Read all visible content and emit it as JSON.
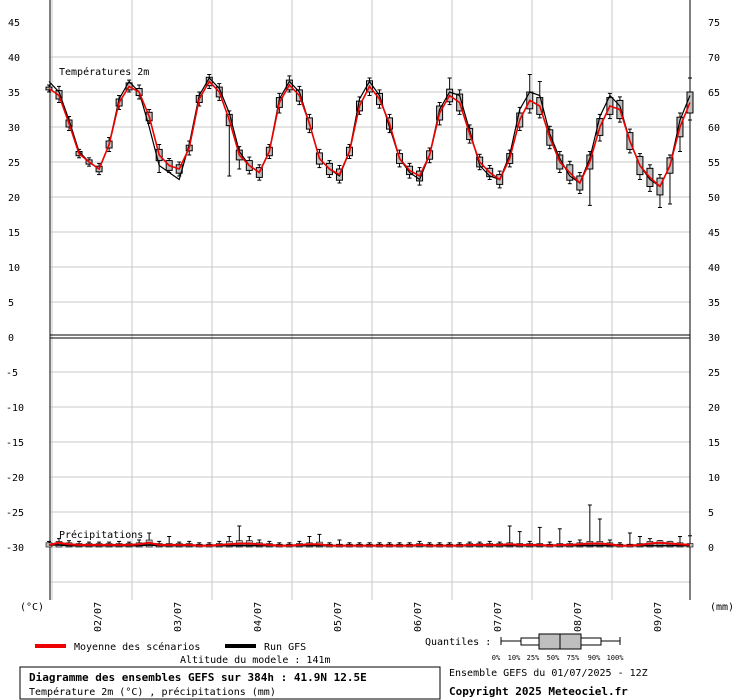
{
  "chart_data": {
    "type": "line",
    "title": "Diagramme des ensembles GEFS sur 384h : 41.9N 12.5E",
    "subtitle": "Température 2m (°C) , précipitations (mm)",
    "panels": {
      "temperature": {
        "label": "Températures 2m",
        "ylim": [
          0,
          45
        ],
        "left_ticks": [
          "45",
          "40",
          "35",
          "30",
          "25",
          "20",
          "15",
          "10",
          "5",
          "0"
        ],
        "right_ticks": [
          "75",
          "70",
          "65",
          "60",
          "55",
          "50",
          "45",
          "40",
          "35",
          "30"
        ]
      },
      "precipitation": {
        "label": "Précipitations",
        "ylim": [
          -32,
          0
        ],
        "left_ticks": [
          "0",
          "-5",
          "-10",
          "-15",
          "-20",
          "-25",
          "-30"
        ],
        "right_ticks": [
          "30",
          "25",
          "20",
          "15",
          "10",
          "5",
          "0"
        ]
      }
    },
    "left_unit": "(°C)",
    "right_unit": "(mm)",
    "x_ticks": [
      "02/07",
      "03/07",
      "04/07",
      "05/07",
      "06/07",
      "07/07",
      "08/07",
      "09/07"
    ],
    "grid": true,
    "series": [
      {
        "name": "Moyenne des scénarios",
        "color": "#ee0000",
        "temp_values": [
          35.5,
          34.5,
          30.5,
          26.2,
          25.0,
          24.0,
          27.5,
          33.5,
          35.8,
          35.0,
          31.5,
          26.0,
          24.5,
          24.0,
          27.0,
          34.0,
          36.5,
          35.0,
          31.0,
          26.0,
          24.5,
          23.5,
          26.5,
          33.5,
          36.0,
          34.5,
          30.5,
          25.5,
          24.0,
          23.2,
          26.5,
          33.0,
          35.8,
          34.0,
          30.5,
          25.5,
          23.8,
          23.0,
          26.0,
          32.0,
          34.5,
          33.5,
          29.0,
          25.0,
          23.5,
          22.5,
          25.5,
          31.0,
          33.8,
          33.0,
          28.5,
          25.0,
          23.5,
          22.0,
          25.0,
          30.0,
          33.0,
          32.5,
          28.0,
          24.5,
          22.8,
          21.5,
          24.5,
          30.0,
          33.5
        ],
        "precip_values": [
          0.3,
          0.6,
          0.4,
          0.3,
          0.3,
          0.3,
          0.3,
          0.3,
          0.3,
          0.4,
          0.6,
          0.3,
          0.3,
          0.3,
          0.3,
          0.2,
          0.2,
          0.3,
          0.4,
          0.5,
          0.5,
          0.4,
          0.3,
          0.2,
          0.2,
          0.3,
          0.4,
          0.4,
          0.2,
          0.2,
          0.2,
          0.2,
          0.2,
          0.2,
          0.2,
          0.2,
          0.2,
          0.3,
          0.2,
          0.2,
          0.2,
          0.2,
          0.3,
          0.3,
          0.3,
          0.3,
          0.4,
          0.3,
          0.3,
          0.3,
          0.2,
          0.3,
          0.3,
          0.4,
          0.5,
          0.5,
          0.4,
          0.2,
          0.2,
          0.3,
          0.5,
          0.6,
          0.5,
          0.4,
          0.3
        ]
      },
      {
        "name": "Run GFS",
        "color": "#000000",
        "temp_values": [
          36.5,
          35.0,
          31.0,
          26.5,
          25.0,
          24.0,
          27.5,
          34.0,
          36.5,
          35.0,
          30.0,
          24.5,
          23.5,
          22.5,
          27.5,
          34.5,
          37.0,
          35.5,
          32.0,
          26.5,
          24.5,
          23.5,
          26.5,
          34.0,
          36.5,
          35.0,
          30.5,
          25.5,
          24.0,
          23.0,
          26.5,
          34.0,
          36.5,
          34.5,
          30.0,
          25.5,
          23.5,
          22.5,
          26.0,
          32.5,
          35.0,
          34.5,
          29.5,
          24.5,
          23.0,
          22.5,
          26.0,
          32.5,
          35.0,
          34.5,
          29.0,
          25.5,
          23.0,
          22.0,
          25.5,
          31.5,
          34.5,
          33.0,
          28.0,
          24.5,
          22.5,
          21.5,
          24.5,
          31.0,
          34.5
        ],
        "precip_values": [
          0.3,
          0.3,
          0.2,
          0.2,
          0.2,
          0.2,
          0.2,
          0.2,
          0.2,
          0.2,
          0.3,
          0.2,
          0.2,
          0.2,
          0.2,
          0.2,
          0.2,
          0.2,
          0.2,
          0.2,
          0.2,
          0.2,
          0.2,
          0.2,
          0.2,
          0.2,
          0.2,
          0.2,
          0.2,
          0.2,
          0.2,
          0.2,
          0.2,
          0.2,
          0.2,
          0.2,
          0.2,
          0.2,
          0.2,
          0.2,
          0.2,
          0.2,
          0.2,
          0.2,
          0.2,
          0.2,
          0.2,
          0.2,
          0.2,
          0.2,
          0.2,
          0.2,
          0.2,
          0.2,
          0.2,
          0.2,
          0.2,
          0.2,
          0.2,
          0.2,
          0.2,
          0.2,
          0.2,
          0.2,
          0.2
        ]
      }
    ],
    "temp_spread": [
      [
        35.3,
        35.7
      ],
      [
        34.0,
        35.2
      ],
      [
        30.0,
        31.0
      ],
      [
        25.9,
        26.5
      ],
      [
        24.7,
        25.3
      ],
      [
        23.6,
        24.4
      ],
      [
        27.0,
        28.0
      ],
      [
        33.0,
        34.0
      ],
      [
        35.3,
        36.3
      ],
      [
        34.5,
        35.5
      ],
      [
        30.9,
        32.1
      ],
      [
        25.2,
        26.8
      ],
      [
        23.8,
        25.2
      ],
      [
        23.4,
        24.6
      ],
      [
        26.6,
        27.4
      ],
      [
        33.5,
        34.5
      ],
      [
        35.9,
        37.1
      ],
      [
        34.3,
        35.7
      ],
      [
        30.2,
        31.8
      ],
      [
        25.3,
        26.7
      ],
      [
        23.8,
        25.2
      ],
      [
        22.8,
        24.2
      ],
      [
        25.9,
        27.1
      ],
      [
        32.8,
        34.2
      ],
      [
        35.3,
        36.7
      ],
      [
        33.7,
        35.3
      ],
      [
        29.7,
        31.3
      ],
      [
        24.7,
        26.3
      ],
      [
        23.2,
        24.8
      ],
      [
        22.4,
        24.0
      ],
      [
        25.9,
        27.1
      ],
      [
        32.3,
        33.7
      ],
      [
        35.0,
        36.6
      ],
      [
        33.2,
        34.8
      ],
      [
        29.7,
        31.3
      ],
      [
        24.8,
        26.2
      ],
      [
        23.2,
        24.4
      ],
      [
        22.3,
        23.7
      ],
      [
        25.4,
        26.6
      ],
      [
        31.0,
        33.0
      ],
      [
        33.6,
        35.4
      ],
      [
        32.3,
        34.7
      ],
      [
        28.2,
        29.8
      ],
      [
        24.3,
        25.7
      ],
      [
        22.9,
        24.1
      ],
      [
        21.8,
        23.2
      ],
      [
        24.8,
        26.2
      ],
      [
        30.0,
        32.0
      ],
      [
        32.6,
        35.0
      ],
      [
        31.8,
        34.2
      ],
      [
        27.4,
        29.6
      ],
      [
        24.0,
        26.0
      ],
      [
        22.4,
        24.6
      ],
      [
        21.0,
        23.0
      ],
      [
        24.0,
        26.0
      ],
      [
        28.8,
        31.2
      ],
      [
        31.8,
        34.2
      ],
      [
        31.2,
        33.8
      ],
      [
        26.8,
        29.2
      ],
      [
        23.2,
        25.8
      ],
      [
        21.5,
        24.1
      ],
      [
        20.3,
        22.7
      ],
      [
        23.4,
        25.6
      ],
      [
        28.6,
        31.4
      ],
      [
        32.0,
        35.0
      ]
    ],
    "temp_whiskers": [
      [
        35.0,
        36.0
      ],
      [
        33.5,
        35.8
      ],
      [
        29.5,
        31.5
      ],
      [
        25.6,
        26.8
      ],
      [
        24.4,
        25.6
      ],
      [
        23.2,
        24.8
      ],
      [
        26.5,
        28.5
      ],
      [
        32.5,
        34.5
      ],
      [
        35.0,
        36.7
      ],
      [
        34.0,
        36.0
      ],
      [
        30.5,
        32.5
      ],
      [
        23.5,
        27.5
      ],
      [
        23.5,
        25.5
      ],
      [
        23.0,
        25.0
      ],
      [
        26.0,
        28.0
      ],
      [
        33.0,
        35.0
      ],
      [
        35.5,
        37.5
      ],
      [
        33.8,
        36.2
      ],
      [
        23.0,
        32.3
      ],
      [
        24.0,
        27.2
      ],
      [
        23.3,
        25.7
      ],
      [
        22.4,
        24.6
      ],
      [
        25.5,
        27.5
      ],
      [
        32.0,
        34.8
      ],
      [
        35.0,
        37.3
      ],
      [
        33.2,
        35.8
      ],
      [
        29.2,
        31.8
      ],
      [
        24.2,
        26.8
      ],
      [
        22.8,
        25.2
      ],
      [
        22.0,
        24.5
      ],
      [
        25.5,
        27.5
      ],
      [
        31.8,
        34.3
      ],
      [
        34.5,
        37.0
      ],
      [
        32.7,
        35.3
      ],
      [
        29.2,
        31.8
      ],
      [
        24.3,
        26.7
      ],
      [
        22.7,
        24.8
      ],
      [
        21.7,
        24.2
      ],
      [
        24.9,
        27.0
      ],
      [
        30.3,
        33.5
      ],
      [
        33.2,
        37.0
      ],
      [
        31.8,
        35.3
      ],
      [
        27.7,
        30.3
      ],
      [
        23.9,
        26.1
      ],
      [
        22.5,
        24.5
      ],
      [
        21.3,
        23.7
      ],
      [
        24.3,
        26.7
      ],
      [
        29.5,
        32.8
      ],
      [
        32.0,
        37.5
      ],
      [
        31.3,
        36.5
      ],
      [
        26.9,
        30.1
      ],
      [
        23.5,
        26.5
      ],
      [
        21.9,
        25.1
      ],
      [
        20.5,
        23.5
      ],
      [
        18.8,
        26.5
      ],
      [
        28.0,
        31.8
      ],
      [
        31.2,
        34.8
      ],
      [
        30.7,
        34.3
      ],
      [
        26.3,
        29.7
      ],
      [
        22.5,
        26.2
      ],
      [
        20.8,
        24.6
      ],
      [
        18.5,
        23.2
      ],
      [
        19.0,
        26.0
      ],
      [
        26.5,
        32.0
      ],
      [
        31.0,
        37.0
      ]
    ],
    "precip_spread": [
      [
        0.0,
        0.6
      ],
      [
        0.0,
        0.8
      ],
      [
        0.0,
        0.6
      ],
      [
        0.0,
        0.5
      ],
      [
        0.0,
        0.5
      ],
      [
        0.0,
        0.5
      ],
      [
        0.0,
        0.5
      ],
      [
        0.0,
        0.5
      ],
      [
        0.0,
        0.5
      ],
      [
        0.0,
        0.6
      ],
      [
        0.0,
        1.0
      ],
      [
        0.0,
        0.5
      ],
      [
        0.0,
        0.5
      ],
      [
        0.0,
        0.5
      ],
      [
        0.0,
        0.5
      ],
      [
        0.0,
        0.4
      ],
      [
        0.0,
        0.4
      ],
      [
        0.0,
        0.5
      ],
      [
        0.0,
        0.8
      ],
      [
        0.0,
        0.9
      ],
      [
        0.0,
        0.9
      ],
      [
        0.0,
        0.6
      ],
      [
        0.0,
        0.5
      ],
      [
        0.0,
        0.4
      ],
      [
        0.0,
        0.4
      ],
      [
        0.0,
        0.5
      ],
      [
        0.0,
        0.6
      ],
      [
        0.0,
        0.7
      ],
      [
        0.0,
        0.4
      ],
      [
        0.0,
        0.4
      ],
      [
        0.0,
        0.4
      ],
      [
        0.0,
        0.4
      ],
      [
        0.0,
        0.4
      ],
      [
        0.0,
        0.4
      ],
      [
        0.0,
        0.4
      ],
      [
        0.0,
        0.4
      ],
      [
        0.0,
        0.4
      ],
      [
        0.0,
        0.5
      ],
      [
        0.0,
        0.4
      ],
      [
        0.0,
        0.4
      ],
      [
        0.0,
        0.4
      ],
      [
        0.0,
        0.4
      ],
      [
        0.0,
        0.5
      ],
      [
        0.0,
        0.5
      ],
      [
        0.0,
        0.5
      ],
      [
        0.0,
        0.5
      ],
      [
        0.0,
        0.6
      ],
      [
        0.0,
        0.5
      ],
      [
        0.0,
        0.5
      ],
      [
        0.0,
        0.5
      ],
      [
        0.0,
        0.4
      ],
      [
        0.0,
        0.5
      ],
      [
        0.0,
        0.5
      ],
      [
        0.0,
        0.6
      ],
      [
        0.0,
        0.8
      ],
      [
        0.0,
        0.8
      ],
      [
        0.0,
        0.6
      ],
      [
        0.0,
        0.4
      ],
      [
        0.0,
        0.4
      ],
      [
        0.0,
        0.5
      ],
      [
        0.0,
        0.8
      ],
      [
        0.0,
        0.9
      ],
      [
        0.0,
        0.8
      ],
      [
        0.0,
        0.6
      ],
      [
        0.0,
        0.5
      ]
    ],
    "precip_whiskers": [
      [
        0.0,
        0.8
      ],
      [
        0.0,
        1.2
      ],
      [
        0.0,
        0.9
      ],
      [
        0.0,
        0.8
      ],
      [
        0.0,
        0.7
      ],
      [
        0.0,
        0.7
      ],
      [
        0.0,
        0.7
      ],
      [
        0.0,
        0.8
      ],
      [
        0.0,
        0.7
      ],
      [
        0.0,
        1.0
      ],
      [
        0.0,
        2.0
      ],
      [
        0.0,
        0.8
      ],
      [
        0.0,
        1.5
      ],
      [
        0.0,
        0.7
      ],
      [
        0.0,
        0.8
      ],
      [
        0.0,
        0.6
      ],
      [
        0.0,
        0.6
      ],
      [
        0.0,
        0.8
      ],
      [
        0.0,
        1.5
      ],
      [
        0.0,
        3.0
      ],
      [
        0.0,
        1.5
      ],
      [
        0.0,
        1.0
      ],
      [
        0.0,
        0.8
      ],
      [
        0.0,
        0.6
      ],
      [
        0.0,
        0.6
      ],
      [
        0.0,
        0.8
      ],
      [
        0.0,
        1.5
      ],
      [
        0.0,
        1.8
      ],
      [
        0.0,
        0.6
      ],
      [
        0.0,
        1.0
      ],
      [
        0.0,
        0.6
      ],
      [
        0.0,
        0.6
      ],
      [
        0.0,
        0.6
      ],
      [
        0.0,
        0.6
      ],
      [
        0.0,
        0.6
      ],
      [
        0.0,
        0.6
      ],
      [
        0.0,
        0.6
      ],
      [
        0.0,
        0.8
      ],
      [
        0.0,
        0.6
      ],
      [
        0.0,
        0.6
      ],
      [
        0.0,
        0.6
      ],
      [
        0.0,
        0.6
      ],
      [
        0.0,
        0.7
      ],
      [
        0.0,
        0.7
      ],
      [
        0.0,
        0.8
      ],
      [
        0.0,
        0.7
      ],
      [
        0.0,
        3.0
      ],
      [
        0.0,
        2.2
      ],
      [
        0.0,
        0.8
      ],
      [
        0.0,
        2.8
      ],
      [
        0.0,
        0.7
      ],
      [
        0.0,
        2.6
      ],
      [
        0.0,
        0.8
      ],
      [
        0.0,
        1.0
      ],
      [
        0.0,
        6.0
      ],
      [
        0.0,
        4.0
      ],
      [
        0.0,
        1.0
      ],
      [
        0.0,
        0.6
      ],
      [
        0.0,
        2.0
      ],
      [
        0.0,
        1.5
      ],
      [
        0.0,
        1.2
      ],
      [
        0.0,
        0.9
      ],
      [
        0.0,
        0.8
      ],
      [
        0.0,
        1.5
      ],
      [
        0.0,
        1.6
      ]
    ]
  },
  "legend": {
    "mean_label": "Moyenne des scénarios",
    "mean_color": "#ee0000",
    "run_label": "Run GFS",
    "run_color": "#000000",
    "quantiles_label": "Quantiles :",
    "quantile_marks": [
      "0%",
      "10%",
      "25%",
      "50%",
      "75%",
      "90%",
      "100%"
    ]
  },
  "footer": {
    "altitude": "Altitude du modele : 141m",
    "title": "Diagramme des ensembles GEFS sur 384h : 41.9N 12.5E",
    "subtitle": "Température 2m (°C) , précipitations (mm)",
    "run_info": "Ensemble GEFS du 01/07/2025 - 12Z",
    "copyright": "Copyright 2025 Meteociel.fr"
  }
}
